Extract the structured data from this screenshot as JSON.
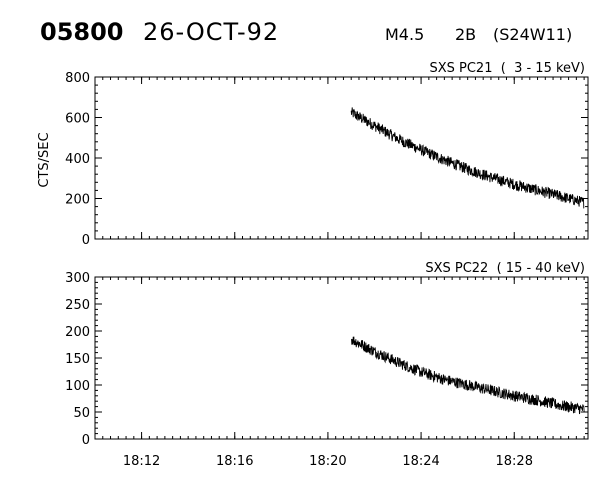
{
  "header": {
    "event_id": "05800",
    "date": "26-OCT-92",
    "flare_class": "M4.5",
    "optical": "2B",
    "location": "(S24W11)"
  },
  "chart_data": [
    {
      "type": "line",
      "title": "SXS PC21  (  3 - 15 keV)",
      "ylabel": "CTS/SEC",
      "xlabel": "",
      "ylim": [
        0,
        800
      ],
      "yticks": [
        0,
        200,
        400,
        600,
        800
      ],
      "x_range_minutes": [
        "18:10",
        "18:31:10"
      ],
      "xticks": [
        "18:12",
        "18:16",
        "18:20",
        "18:24",
        "18:28"
      ],
      "grid": false,
      "series": [
        {
          "x": [
            "18:21:00",
            "18:22:00",
            "18:23:00",
            "18:24:00",
            "18:25:00",
            "18:26:00",
            "18:27:00",
            "18:28:00",
            "18:29:00",
            "18:30:00",
            "18:31:00"
          ],
          "values": [
            625,
            560,
            495,
            440,
            390,
            345,
            305,
            270,
            240,
            210,
            180
          ]
        }
      ]
    },
    {
      "type": "line",
      "title": "SXS PC22  ( 15 - 40 keV)",
      "ylabel": "",
      "xlabel": "",
      "ylim": [
        0,
        300
      ],
      "yticks": [
        0,
        50,
        100,
        150,
        200,
        250,
        300
      ],
      "x_range_minutes": [
        "18:10",
        "18:31:10"
      ],
      "xticks": [
        "18:12",
        "18:16",
        "18:20",
        "18:24",
        "18:28"
      ],
      "grid": false,
      "series": [
        {
          "x": [
            "18:21:00",
            "18:22:00",
            "18:23:00",
            "18:24:00",
            "18:25:00",
            "18:26:00",
            "18:27:00",
            "18:28:00",
            "18:29:00",
            "18:30:00",
            "18:31:00"
          ],
          "values": [
            185,
            162,
            142,
            124,
            110,
            100,
            90,
            80,
            72,
            62,
            55
          ]
        }
      ]
    }
  ]
}
